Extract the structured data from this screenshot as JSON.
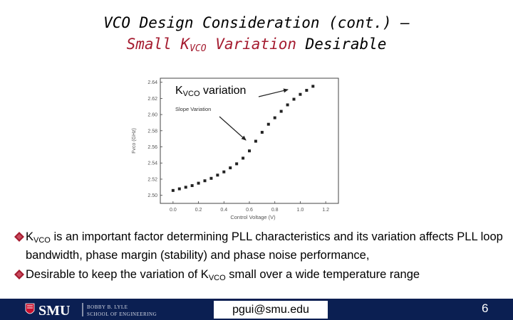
{
  "slide": {
    "title_line1": "VCO Design Consideration (cont.) –",
    "title_line2_a": "Small K",
    "title_line2_sub": "VCO",
    "title_line2_b": " Variation",
    "title_line2_c": " Desirable",
    "page_number": "6"
  },
  "chart_data": {
    "type": "scatter",
    "title": "",
    "xlabel": "Control Voltage (V)",
    "ylabel": "Fvco (GHz)",
    "xlim": [
      -0.1,
      1.3
    ],
    "ylim": [
      2.49,
      2.645
    ],
    "x_ticks": [
      "0.0",
      "0.2",
      "0.4",
      "0.6",
      "0.8",
      "1.0",
      "1.2"
    ],
    "y_ticks": [
      "2.50",
      "2.52",
      "2.54",
      "2.56",
      "2.58",
      "2.60",
      "2.62",
      "2.64"
    ],
    "x": [
      0.0,
      0.05,
      0.1,
      0.15,
      0.2,
      0.25,
      0.3,
      0.35,
      0.4,
      0.45,
      0.5,
      0.55,
      0.6,
      0.65,
      0.7,
      0.75,
      0.8,
      0.85,
      0.9,
      0.95,
      1.0,
      1.05,
      1.1
    ],
    "y": [
      2.506,
      2.508,
      2.51,
      2.512,
      2.515,
      2.518,
      2.521,
      2.525,
      2.529,
      2.534,
      2.539,
      2.546,
      2.555,
      2.567,
      2.578,
      2.588,
      2.596,
      2.604,
      2.612,
      2.619,
      2.625,
      2.63,
      2.635
    ],
    "annotations": {
      "kvco_main": "K",
      "kvco_sub": "VCO",
      "kvco_rest": " variation",
      "slope": "Slope Variation"
    }
  },
  "bullets": [
    {
      "pre": "K",
      "sub": "VCO",
      "post": " is an important factor determining PLL characteristics and its variation affects PLL loop bandwidth, phase margin (stability) and phase noise performance,"
    },
    {
      "pre": "Desirable to keep the variation of K",
      "sub": "VCO",
      "post": " small over a wide temperature range"
    }
  ],
  "footer": {
    "logo_text": "SMU",
    "school_line1": "BOBBY B. LYLE",
    "school_line2": "SCHOOL OF ENGINEERING",
    "email": "pgui@smu.edu"
  },
  "colors": {
    "accent": "#a51c30",
    "footer_bg": "#0b1f52",
    "marker": "#222222"
  }
}
